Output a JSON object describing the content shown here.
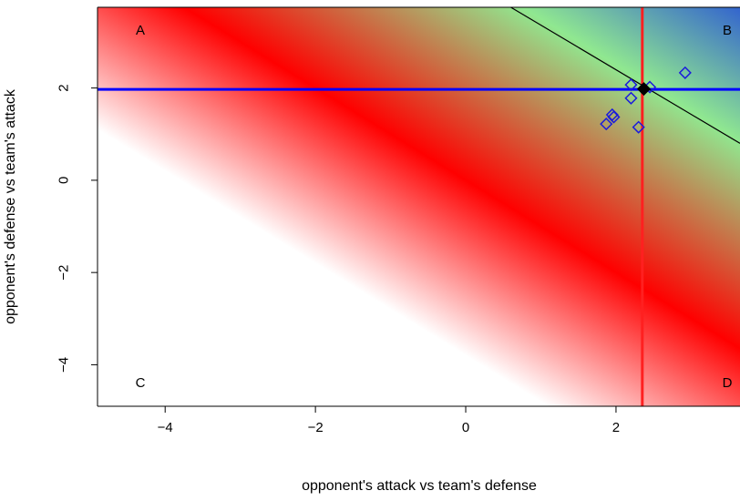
{
  "chart_data": {
    "type": "scatter",
    "xlabel": "opponent's attack vs team's defense",
    "ylabel": "opponent's defense vs team's attack",
    "xlim": [
      -4.9,
      3.65
    ],
    "ylim": [
      -4.9,
      3.75
    ],
    "x_ticks": [
      -4,
      -2,
      0,
      2
    ],
    "x_tick_labels": [
      "−4",
      "−2",
      "0",
      "2"
    ],
    "y_ticks": [
      -4,
      -2,
      0,
      2
    ],
    "y_tick_labels": [
      "−4",
      "−2",
      "0",
      "2"
    ],
    "grid": false,
    "background_gradient": {
      "direction": "along x + y",
      "stops": [
        {
          "value": -3.8,
          "color": "#ffffff"
        },
        {
          "value": 0.0,
          "color": "#ff0000"
        },
        {
          "value": 4.5,
          "color": "#90e890"
        },
        {
          "value": 7.5,
          "color": "#3060d0"
        }
      ]
    },
    "corner_labels": [
      {
        "text": "A",
        "position": "top-left"
      },
      {
        "text": "B",
        "position": "top-right"
      },
      {
        "text": "C",
        "position": "bottom-left"
      },
      {
        "text": "D",
        "position": "bottom-right"
      }
    ],
    "reference_lines": [
      {
        "orientation": "vertical",
        "x": 2.35,
        "color": "#ff2020"
      },
      {
        "orientation": "horizontal",
        "y": 1.97,
        "color": "#0000ff"
      },
      {
        "orientation": "diagonal",
        "from": [
          0.6,
          3.75
        ],
        "to": [
          3.65,
          0.8
        ],
        "color": "#000000"
      }
    ],
    "series": [
      {
        "marker": "open-diamond",
        "color": "#1a1adc",
        "points": [
          {
            "x": 2.2,
            "y": 2.07
          },
          {
            "x": 2.2,
            "y": 1.78
          },
          {
            "x": 1.95,
            "y": 1.42
          },
          {
            "x": 1.97,
            "y": 1.37
          },
          {
            "x": 1.87,
            "y": 1.22
          },
          {
            "x": 2.3,
            "y": 1.15
          },
          {
            "x": 2.45,
            "y": 2.02
          },
          {
            "x": 2.92,
            "y": 2.33
          }
        ]
      },
      {
        "marker": "filled-diamond",
        "color": "#000000",
        "points": [
          {
            "x": 2.37,
            "y": 1.98
          }
        ]
      }
    ]
  }
}
